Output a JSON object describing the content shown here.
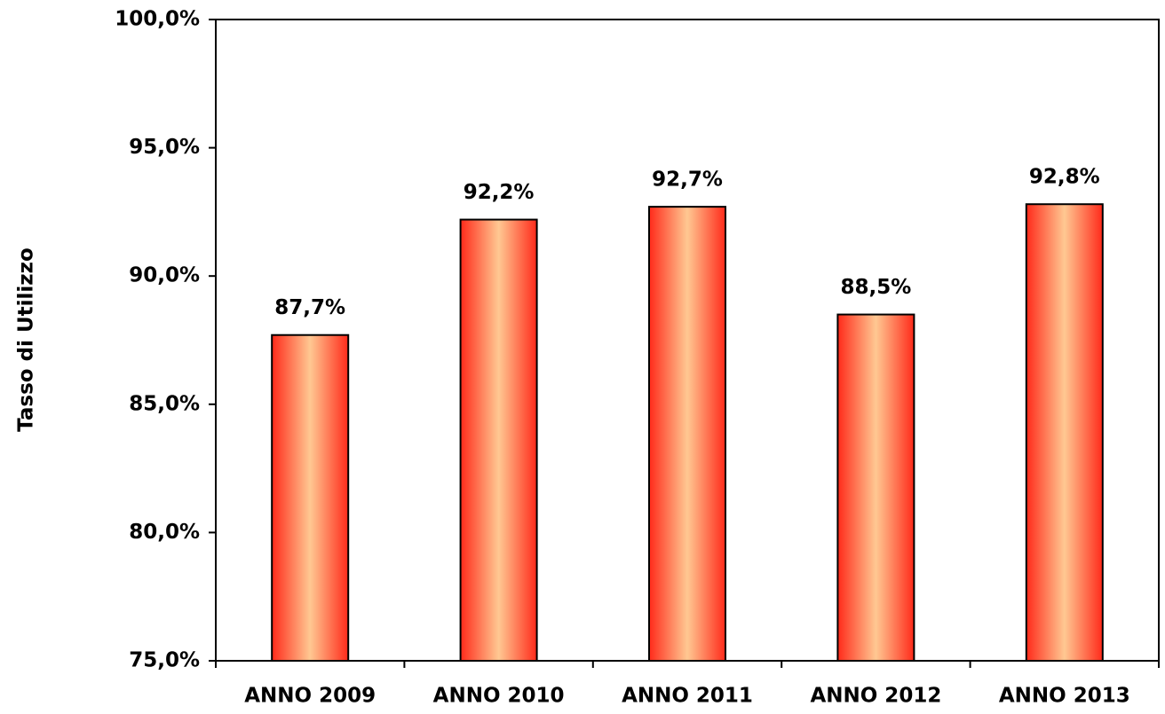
{
  "chart_data": {
    "type": "bar",
    "y_axis_label": "Tasso di Utilizzo",
    "categories": [
      "ANNO 2009",
      "ANNO 2010",
      "ANNO 2011",
      "ANNO 2012",
      "ANNO 2013"
    ],
    "values": [
      87.7,
      92.2,
      92.7,
      88.5,
      92.8
    ],
    "value_labels": [
      "87,7%",
      "92,2%",
      "92,7%",
      "88,5%",
      "92,8%"
    ],
    "colors": [
      "#ff2a1a",
      "#ffc892"
    ],
    "ylim": [
      75,
      100
    ],
    "yticks": [
      {
        "value": 75,
        "label": "75,0%"
      },
      {
        "value": 80,
        "label": "80,0%"
      },
      {
        "value": 85,
        "label": "85,0%"
      },
      {
        "value": 90,
        "label": "90,0%"
      },
      {
        "value": 95,
        "label": "95,0%"
      },
      {
        "value": 100,
        "label": "100,0%"
      }
    ],
    "grid": false
  }
}
